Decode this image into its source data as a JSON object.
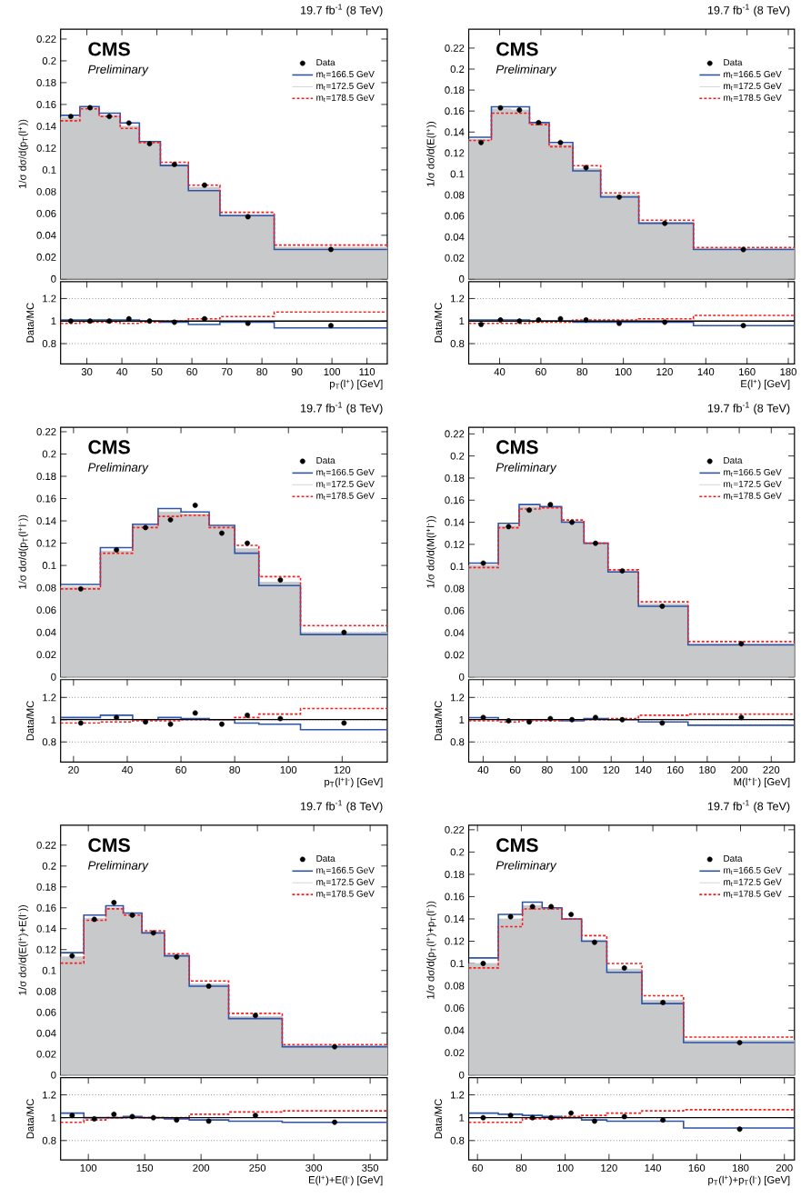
{
  "chart_data": [
    {
      "type": "step",
      "title": "19.7 fb$^{-1}$ (8 TeV)",
      "ylabel": "1/σ dσ/d(p$_{T}$(l$^{+}$))",
      "annotations": [
        "CMS",
        "Preliminary"
      ],
      "legend": "top right",
      "tick_labels": "y",
      "xlim": [
        22.5,
        115.8
      ],
      "xticks": [
        30,
        40,
        50,
        60,
        70,
        80,
        90,
        100,
        110
      ],
      "ylim": [
        0,
        0.229
      ],
      "yticks": [
        0,
        0.02,
        0.04,
        0.06,
        0.08,
        0.1,
        0.12,
        0.14,
        0.16,
        0.18,
        0.2,
        0.22
      ],
      "series": [
        {
          "name": "Data",
          "type": "scatter",
          "marker": "circle",
          "color": "#000000",
          "x": [
            25.4,
            30.9,
            36.4,
            42.0,
            47.9,
            55.0,
            63.6,
            76.0,
            99.7
          ],
          "values": [
            0.149,
            0.157,
            0.149,
            0.143,
            0.124,
            0.105,
            0.086,
            0.057,
            0.027
          ]
        },
        {
          "name": "m$_{t}$=166.5 GeV",
          "color": "#2d54a8",
          "x": [
            22.5,
            28,
            33.5,
            39.5,
            45,
            51,
            59,
            68,
            83.5,
            115.8
          ],
          "values": [
            0.15,
            0.158,
            0.152,
            0.143,
            0.126,
            0.104,
            0.081,
            0.058,
            0.027,
            0.027
          ]
        },
        {
          "name": "m$_{t}$=172.5 GeV",
          "type": "area",
          "color": "#c8c9cb",
          "x": [
            22.5,
            28,
            33.5,
            39.5,
            45,
            51,
            59,
            68,
            83.5,
            115.8
          ],
          "values": [
            0.148,
            0.157,
            0.15,
            0.14,
            0.125,
            0.105,
            0.084,
            0.059,
            0.029,
            0.029
          ]
        },
        {
          "name": "m$_{t}$=178.5 GeV",
          "color": "#ff1a1a",
          "line_style": "dashed",
          "x": [
            22.5,
            28,
            33.5,
            39.5,
            45,
            51,
            59,
            68,
            83.5,
            115.8
          ],
          "values": [
            0.145,
            0.156,
            0.149,
            0.138,
            0.125,
            0.107,
            0.086,
            0.061,
            0.031,
            0.031
          ]
        }
      ]
    },
    {
      "type": "step",
      "xlabel": "p$_{T}$(l$^{+}$) [GeV]",
      "ylabel": "Data/MC",
      "grid": "y",
      "ref_lines": [
        {
          "axis": "y",
          "value": 1
        }
      ],
      "xlim": [
        22.5,
        115.8
      ],
      "xticks": [
        30,
        40,
        50,
        60,
        70,
        80,
        90,
        100,
        110
      ],
      "ylim": [
        0.62,
        1.35
      ],
      "yticks": [
        0.8,
        1,
        1.2
      ],
      "series": [
        {
          "color": "#2d54a8",
          "x": [
            22.5,
            28,
            33.5,
            39.5,
            45,
            51,
            59,
            68,
            83.5,
            115.8
          ],
          "values": [
            1.01,
            1.01,
            1.01,
            1.01,
            1.0,
            0.99,
            0.97,
            0.99,
            0.94,
            0.94
          ]
        },
        {
          "color": "#ff1a1a",
          "line_style": "dashed",
          "x": [
            22.5,
            28,
            33.5,
            39.5,
            45,
            51,
            59,
            68,
            83.5,
            115.8
          ],
          "values": [
            0.98,
            0.99,
            0.99,
            0.98,
            0.99,
            1.0,
            1.02,
            1.04,
            1.08,
            1.08
          ]
        },
        {
          "type": "scatter",
          "marker": "circle",
          "color": "#000000",
          "x": [
            25.4,
            30.9,
            36.4,
            42.0,
            47.9,
            55.0,
            63.6,
            76.0,
            99.7
          ],
          "values": [
            1.0,
            1.0,
            1.0,
            1.02,
            1.0,
            0.99,
            1.02,
            0.98,
            0.96
          ]
        }
      ]
    },
    {
      "type": "step",
      "title": "19.7 fb$^{-1}$ (8 TeV)",
      "ylabel": "1/σ dσ/d(E(l$^{+}$))",
      "annotations": [
        "CMS",
        "Preliminary"
      ],
      "legend": "top right",
      "tick_labels": "y",
      "xlim": [
        25,
        183
      ],
      "xticks": [
        40,
        60,
        80,
        100,
        120,
        140,
        160,
        180
      ],
      "ylim": [
        0,
        0.238
      ],
      "yticks": [
        0,
        0.02,
        0.04,
        0.06,
        0.08,
        0.1,
        0.12,
        0.14,
        0.16,
        0.18,
        0.2,
        0.22
      ],
      "series": [
        {
          "name": "Data",
          "type": "scatter",
          "marker": "circle",
          "color": "#000000",
          "x": [
            31.0,
            40.4,
            49.6,
            58.9,
            69.5,
            81.9,
            98.0,
            120.1,
            158.2
          ],
          "values": [
            0.13,
            0.163,
            0.161,
            0.149,
            0.13,
            0.106,
            0.078,
            0.053,
            0.028
          ]
        },
        {
          "name": "m$_{t}$=166.5 GeV",
          "color": "#2d54a8",
          "x": [
            25,
            36,
            45.5,
            54.5,
            64,
            75.5,
            89,
            107.5,
            134,
            183
          ],
          "values": [
            0.135,
            0.164,
            0.164,
            0.149,
            0.13,
            0.103,
            0.078,
            0.053,
            0.028,
            0.028
          ]
        },
        {
          "name": "m$_{t}$=172.5 GeV",
          "type": "area",
          "color": "#c8c9cb",
          "x": [
            25,
            36,
            45.5,
            54.5,
            64,
            75.5,
            89,
            107.5,
            134,
            183
          ],
          "values": [
            0.133,
            0.162,
            0.161,
            0.148,
            0.128,
            0.105,
            0.08,
            0.054,
            0.029,
            0.029
          ]
        },
        {
          "name": "m$_{t}$=178.5 GeV",
          "color": "#ff1a1a",
          "line_style": "dashed",
          "x": [
            25,
            36,
            45.5,
            54.5,
            64,
            75.5,
            89,
            107.5,
            134,
            183
          ],
          "values": [
            0.132,
            0.158,
            0.158,
            0.147,
            0.126,
            0.108,
            0.082,
            0.056,
            0.03,
            0.03
          ]
        }
      ]
    },
    {
      "type": "step",
      "xlabel": "E(l$^{+}$) [GeV]",
      "ylabel": "Data/MC",
      "grid": "y",
      "ref_lines": [
        {
          "axis": "y",
          "value": 1
        }
      ],
      "xlim": [
        25,
        183
      ],
      "xticks": [
        40,
        60,
        80,
        100,
        120,
        140,
        160,
        180
      ],
      "ylim": [
        0.62,
        1.35
      ],
      "yticks": [
        0.8,
        1,
        1.2
      ],
      "series": [
        {
          "color": "#2d54a8",
          "x": [
            25,
            36,
            45.5,
            54.5,
            64,
            75.5,
            89,
            107.5,
            134,
            183
          ],
          "values": [
            1.01,
            1.01,
            1.01,
            1.0,
            1.0,
            0.99,
            0.99,
            0.99,
            0.96,
            0.96
          ]
        },
        {
          "color": "#ff1a1a",
          "line_style": "dashed",
          "x": [
            25,
            36,
            45.5,
            54.5,
            64,
            75.5,
            89,
            107.5,
            134,
            183
          ],
          "values": [
            0.98,
            0.98,
            0.98,
            0.99,
            0.99,
            1.01,
            1.01,
            1.02,
            1.05,
            1.05
          ]
        },
        {
          "type": "scatter",
          "marker": "circle",
          "color": "#000000",
          "x": [
            31.0,
            40.4,
            49.6,
            58.9,
            69.5,
            81.9,
            98.0,
            120.1,
            158.2
          ],
          "values": [
            0.97,
            1.01,
            1.0,
            1.01,
            1.02,
            1.01,
            0.98,
            0.99,
            0.96
          ]
        }
      ]
    },
    {
      "type": "step",
      "title": "19.7 fb$^{-1}$ (8 TeV)",
      "ylabel": "1/σ dσ/d(p$_{T}$(l$^{+}$l$^{-}$))",
      "annotations": [
        "CMS",
        "Preliminary"
      ],
      "legend": "top right",
      "tick_labels": "y",
      "xlim": [
        15.2,
        136.8
      ],
      "xticks": [
        20,
        40,
        60,
        80,
        100,
        120
      ],
      "ylim": [
        0,
        0.224
      ],
      "yticks": [
        0,
        0.02,
        0.04,
        0.06,
        0.08,
        0.1,
        0.12,
        0.14,
        0.16,
        0.18,
        0.2,
        0.22
      ],
      "series": [
        {
          "name": "Data",
          "type": "scatter",
          "marker": "circle",
          "color": "#000000",
          "x": [
            22.7,
            36.0,
            46.8,
            56.1,
            65.3,
            75.2,
            84.7,
            97.0,
            120.7
          ],
          "values": [
            0.079,
            0.114,
            0.134,
            0.141,
            0.154,
            0.129,
            0.12,
            0.087,
            0.04
          ]
        },
        {
          "name": "m$_{t}$=166.5 GeV",
          "color": "#2d54a8",
          "x": [
            15.2,
            30,
            42,
            51.5,
            60,
            70.5,
            80,
            89,
            104.5,
            136.8
          ],
          "values": [
            0.083,
            0.116,
            0.137,
            0.151,
            0.148,
            0.136,
            0.111,
            0.082,
            0.038,
            0.038
          ]
        },
        {
          "name": "m$_{t}$=172.5 GeV",
          "type": "area",
          "color": "#c8c9cb",
          "x": [
            15.2,
            30,
            42,
            51.5,
            60,
            70.5,
            80,
            89,
            104.5,
            136.8
          ],
          "values": [
            0.081,
            0.113,
            0.136,
            0.148,
            0.146,
            0.135,
            0.115,
            0.085,
            0.04,
            0.04
          ]
        },
        {
          "name": "m$_{t}$=178.5 GeV",
          "color": "#ff1a1a",
          "line_style": "dashed",
          "x": [
            15.2,
            30,
            42,
            51.5,
            60,
            70.5,
            80,
            89,
            104.5,
            136.8
          ],
          "values": [
            0.079,
            0.111,
            0.134,
            0.144,
            0.145,
            0.134,
            0.118,
            0.09,
            0.046,
            0.046
          ]
        }
      ]
    },
    {
      "type": "step",
      "xlabel": "p$_{T}$(l$^{+}$l$^{-}$) [GeV]",
      "ylabel": "Data/MC",
      "grid": "y",
      "ref_lines": [
        {
          "axis": "y",
          "value": 1
        }
      ],
      "xlim": [
        15.2,
        136.8
      ],
      "xticks": [
        20,
        40,
        60,
        80,
        100,
        120
      ],
      "ylim": [
        0.62,
        1.36
      ],
      "yticks": [
        0.8,
        1,
        1.2
      ],
      "series": [
        {
          "color": "#2d54a8",
          "x": [
            15.2,
            30,
            42,
            51.5,
            60,
            70.5,
            80,
            89,
            104.5,
            136.8
          ],
          "values": [
            1.02,
            1.04,
            1.0,
            1.02,
            1.01,
            1.0,
            0.97,
            0.96,
            0.91,
            0.91
          ]
        },
        {
          "color": "#ff1a1a",
          "line_style": "dashed",
          "x": [
            15.2,
            30,
            42,
            51.5,
            60,
            70.5,
            80,
            89,
            104.5,
            136.8
          ],
          "values": [
            0.97,
            0.98,
            0.99,
            0.99,
            1.0,
            1.0,
            1.02,
            1.05,
            1.1,
            1.1
          ]
        },
        {
          "type": "scatter",
          "marker": "circle",
          "color": "#000000",
          "x": [
            22.7,
            36.0,
            46.8,
            56.1,
            65.3,
            75.2,
            84.7,
            97.0,
            120.7
          ],
          "values": [
            0.97,
            1.02,
            0.98,
            0.96,
            1.06,
            0.96,
            1.04,
            1.01,
            0.97
          ]
        }
      ]
    },
    {
      "type": "step",
      "title": "19.7 fb$^{-1}$ (8 TeV)",
      "ylabel": "1/σ dσ/d(M(l$^{+}$l$^{-}$))",
      "annotations": [
        "CMS",
        "Preliminary"
      ],
      "legend": "top right",
      "tick_labels": "y",
      "xlim": [
        31,
        234.5
      ],
      "xticks": [
        40,
        60,
        80,
        100,
        120,
        140,
        160,
        180,
        200,
        220
      ],
      "ylim": [
        0,
        0.226
      ],
      "yticks": [
        0,
        0.02,
        0.04,
        0.06,
        0.08,
        0.1,
        0.12,
        0.14,
        0.16,
        0.18,
        0.2,
        0.22
      ],
      "series": [
        {
          "name": "Data",
          "type": "scatter",
          "marker": "circle",
          "color": "#000000",
          "x": [
            40.1,
            55.9,
            68.8,
            82.0,
            95.5,
            110.2,
            126.9,
            151.9,
            201.3
          ],
          "values": [
            0.103,
            0.136,
            0.151,
            0.156,
            0.14,
            0.121,
            0.096,
            0.064,
            0.03
          ]
        },
        {
          "name": "m$_{t}$=166.5 GeV",
          "color": "#2d54a8",
          "x": [
            31,
            49.5,
            62.5,
            75.5,
            89,
            103,
            118,
            137,
            168,
            234.5
          ],
          "values": [
            0.103,
            0.139,
            0.156,
            0.154,
            0.14,
            0.121,
            0.095,
            0.064,
            0.029,
            0.029
          ]
        },
        {
          "name": "m$_{t}$=172.5 GeV",
          "type": "area",
          "color": "#c8c9cb",
          "x": [
            31,
            49.5,
            62.5,
            75.5,
            89,
            103,
            118,
            137,
            168,
            234.5
          ],
          "values": [
            0.101,
            0.137,
            0.154,
            0.155,
            0.141,
            0.12,
            0.096,
            0.066,
            0.03,
            0.03
          ]
        },
        {
          "name": "m$_{t}$=178.5 GeV",
          "color": "#ff1a1a",
          "line_style": "dashed",
          "x": [
            31,
            49.5,
            62.5,
            75.5,
            89,
            103,
            118,
            137,
            168,
            234.5
          ],
          "values": [
            0.099,
            0.135,
            0.152,
            0.153,
            0.142,
            0.121,
            0.097,
            0.068,
            0.032,
            0.032
          ]
        }
      ]
    },
    {
      "type": "step",
      "xlabel": "M(l$^{+}$l$^{-}$) [GeV]",
      "ylabel": "Data/MC",
      "grid": "y",
      "ref_lines": [
        {
          "axis": "y",
          "value": 1
        }
      ],
      "xlim": [
        31,
        234.5
      ],
      "xticks": [
        40,
        60,
        80,
        100,
        120,
        140,
        160,
        180,
        200,
        220
      ],
      "ylim": [
        0.62,
        1.36
      ],
      "yticks": [
        0.8,
        1,
        1.2
      ],
      "series": [
        {
          "color": "#2d54a8",
          "x": [
            31,
            49.5,
            62.5,
            75.5,
            89,
            103,
            118,
            137,
            168,
            234.5
          ],
          "values": [
            1.02,
            1.0,
            1.0,
            1.0,
            0.99,
            1.01,
            1.0,
            0.98,
            0.95,
            0.95
          ]
        },
        {
          "color": "#ff1a1a",
          "line_style": "dashed",
          "x": [
            31,
            49.5,
            62.5,
            75.5,
            89,
            103,
            118,
            137,
            168,
            234.5
          ],
          "values": [
            0.99,
            0.98,
            0.99,
            0.99,
            1.0,
            1.0,
            1.01,
            1.04,
            1.05,
            1.05
          ]
        },
        {
          "type": "scatter",
          "marker": "circle",
          "color": "#000000",
          "x": [
            40.1,
            55.9,
            68.8,
            82.0,
            95.5,
            110.2,
            126.9,
            151.9,
            201.3
          ],
          "values": [
            1.02,
            0.99,
            0.98,
            1.01,
            1.0,
            1.02,
            1.0,
            0.97,
            1.02
          ]
        }
      ]
    },
    {
      "type": "step",
      "title": "19.7 fb$^{-1}$ (8 TeV)",
      "ylabel": "1/σ dσ/d(E(l$^{+}$)+E(l$^{-}$))",
      "annotations": [
        "CMS",
        "Preliminary"
      ],
      "legend": "top right",
      "tick_labels": "y",
      "xlim": [
        75.4,
        365.2
      ],
      "xticks": [
        100,
        150,
        200,
        250,
        300,
        350
      ],
      "ylim": [
        0,
        0.239
      ],
      "yticks": [
        0,
        0.02,
        0.04,
        0.06,
        0.08,
        0.1,
        0.12,
        0.14,
        0.16,
        0.18,
        0.2,
        0.22
      ],
      "series": [
        {
          "name": "Data",
          "type": "scatter",
          "marker": "circle",
          "color": "#000000",
          "x": [
            85.6,
            105.3,
            122.7,
            139.0,
            157.7,
            178.3,
            206.8,
            248.2,
            318.5
          ],
          "values": [
            0.114,
            0.149,
            0.165,
            0.153,
            0.136,
            0.113,
            0.085,
            0.057,
            0.027
          ]
        },
        {
          "name": "m$_{t}$=166.5 GeV",
          "color": "#2d54a8",
          "x": [
            75.4,
            96,
            115.5,
            131,
            147.5,
            167.5,
            189.5,
            224.5,
            272,
            365.2
          ],
          "values": [
            0.117,
            0.153,
            0.162,
            0.155,
            0.136,
            0.114,
            0.085,
            0.054,
            0.027,
            0.027
          ]
        },
        {
          "name": "m$_{t}$=172.5 GeV",
          "type": "area",
          "color": "#c8c9cb",
          "x": [
            75.4,
            96,
            115.5,
            131,
            147.5,
            167.5,
            189.5,
            224.5,
            272,
            365.2
          ],
          "values": [
            0.113,
            0.15,
            0.16,
            0.154,
            0.137,
            0.115,
            0.087,
            0.056,
            0.028,
            0.028
          ]
        },
        {
          "name": "m$_{t}$=178.5 GeV",
          "color": "#ff1a1a",
          "line_style": "dashed",
          "x": [
            75.4,
            96,
            115.5,
            131,
            147.5,
            167.5,
            189.5,
            224.5,
            272,
            365.2
          ],
          "values": [
            0.107,
            0.148,
            0.159,
            0.153,
            0.138,
            0.116,
            0.09,
            0.059,
            0.029,
            0.029
          ]
        }
      ]
    },
    {
      "type": "step",
      "xlabel": "E(l$^{+}$)+E(l$^{-}$) [GeV]",
      "ylabel": "Data/MC",
      "grid": "y",
      "ref_lines": [
        {
          "axis": "y",
          "value": 1
        }
      ],
      "xlim": [
        75.4,
        365.2
      ],
      "xticks": [
        100,
        150,
        200,
        250,
        300,
        350
      ],
      "ylim": [
        0.63,
        1.35
      ],
      "yticks": [
        0.8,
        1,
        1.2
      ],
      "series": [
        {
          "color": "#2d54a8",
          "x": [
            75.4,
            96,
            115.5,
            131,
            147.5,
            167.5,
            189.5,
            224.5,
            272,
            365.2
          ],
          "values": [
            1.04,
            1.0,
            1.0,
            1.01,
            1.0,
            0.99,
            0.98,
            0.97,
            0.96,
            0.96
          ]
        },
        {
          "color": "#ff1a1a",
          "line_style": "dashed",
          "x": [
            75.4,
            96,
            115.5,
            131,
            147.5,
            167.5,
            189.5,
            224.5,
            272,
            365.2
          ],
          "values": [
            0.96,
            0.98,
            1.0,
            1.0,
            1.0,
            1.0,
            1.03,
            1.05,
            1.06,
            1.06
          ]
        },
        {
          "type": "scatter",
          "marker": "circle",
          "color": "#000000",
          "x": [
            85.6,
            105.3,
            122.7,
            139.0,
            157.7,
            178.3,
            206.8,
            248.2,
            318.5
          ],
          "values": [
            1.02,
            0.99,
            1.03,
            1.01,
            1.0,
            0.98,
            0.97,
            1.02,
            0.96
          ]
        }
      ]
    },
    {
      "type": "step",
      "title": "19.7 fb$^{-1}$ (8 TeV)",
      "ylabel": "1/σ dσ/d(p$_{T}$(l$^{+}$)+p$_{T}$(l$^{-}$))",
      "annotations": [
        "CMS",
        "Preliminary"
      ],
      "legend": "top right",
      "tick_labels": "y",
      "xlim": [
        56,
        204.6
      ],
      "xticks": [
        60,
        80,
        100,
        120,
        140,
        160,
        180,
        200
      ],
      "ylim": [
        0,
        0.224
      ],
      "yticks": [
        0,
        0.02,
        0.04,
        0.06,
        0.08,
        0.1,
        0.12,
        0.14,
        0.16,
        0.18,
        0.2,
        0.22
      ],
      "series": [
        {
          "name": "Data",
          "type": "scatter",
          "marker": "circle",
          "color": "#000000",
          "x": [
            62.6,
            75.1,
            85.1,
            93.6,
            102.7,
            113.4,
            127.0,
            144.6,
            179.6
          ],
          "values": [
            0.1,
            0.142,
            0.151,
            0.151,
            0.144,
            0.119,
            0.096,
            0.065,
            0.029
          ]
        },
        {
          "name": "m$_{t}$=166.5 GeV",
          "color": "#2d54a8",
          "x": [
            56,
            69.5,
            80.5,
            89.5,
            98.5,
            107.5,
            119,
            135,
            154,
            204.6
          ],
          "values": [
            0.105,
            0.144,
            0.155,
            0.15,
            0.14,
            0.12,
            0.092,
            0.064,
            0.029,
            0.029
          ]
        },
        {
          "name": "m$_{t}$=172.5 GeV",
          "type": "area",
          "color": "#c8c9cb",
          "x": [
            56,
            69.5,
            80.5,
            89.5,
            98.5,
            107.5,
            119,
            135,
            154,
            204.6
          ],
          "values": [
            0.1,
            0.14,
            0.152,
            0.15,
            0.14,
            0.121,
            0.095,
            0.067,
            0.031,
            0.031
          ]
        },
        {
          "name": "m$_{t}$=178.5 GeV",
          "color": "#ff1a1a",
          "line_style": "dashed",
          "x": [
            56,
            69.5,
            80.5,
            89.5,
            98.5,
            107.5,
            119,
            135,
            154,
            204.6
          ],
          "values": [
            0.096,
            0.133,
            0.149,
            0.149,
            0.14,
            0.125,
            0.1,
            0.071,
            0.034,
            0.034
          ]
        }
      ]
    },
    {
      "type": "step",
      "xlabel": "p$_{T}$(l$^{+}$)+p$_{T}$(l$^{-}$) [GeV]",
      "ylabel": "Data/MC",
      "grid": "y",
      "ref_lines": [
        {
          "axis": "y",
          "value": 1
        }
      ],
      "xlim": [
        56,
        204.6
      ],
      "xticks": [
        60,
        80,
        100,
        120,
        140,
        160,
        180,
        200
      ],
      "ylim": [
        0.63,
        1.35
      ],
      "yticks": [
        0.8,
        1,
        1.2
      ],
      "series": [
        {
          "color": "#2d54a8",
          "x": [
            56,
            69.5,
            80.5,
            89.5,
            98.5,
            107.5,
            119,
            135,
            154,
            204.6
          ],
          "values": [
            1.04,
            1.03,
            1.02,
            1.01,
            1.0,
            0.98,
            0.97,
            0.97,
            0.91,
            0.91
          ]
        },
        {
          "color": "#ff1a1a",
          "line_style": "dashed",
          "x": [
            56,
            69.5,
            80.5,
            89.5,
            98.5,
            107.5,
            119,
            135,
            154,
            204.6
          ],
          "values": [
            0.96,
            0.96,
            0.99,
            0.99,
            1.01,
            1.02,
            1.04,
            1.06,
            1.07,
            1.07
          ]
        },
        {
          "type": "scatter",
          "marker": "circle",
          "color": "#000000",
          "x": [
            62.6,
            75.1,
            85.1,
            93.6,
            102.7,
            113.4,
            127.0,
            144.6,
            179.6
          ],
          "values": [
            1.0,
            1.02,
            1.0,
            1.0,
            1.04,
            0.97,
            1.01,
            0.98,
            0.9
          ]
        }
      ]
    }
  ]
}
